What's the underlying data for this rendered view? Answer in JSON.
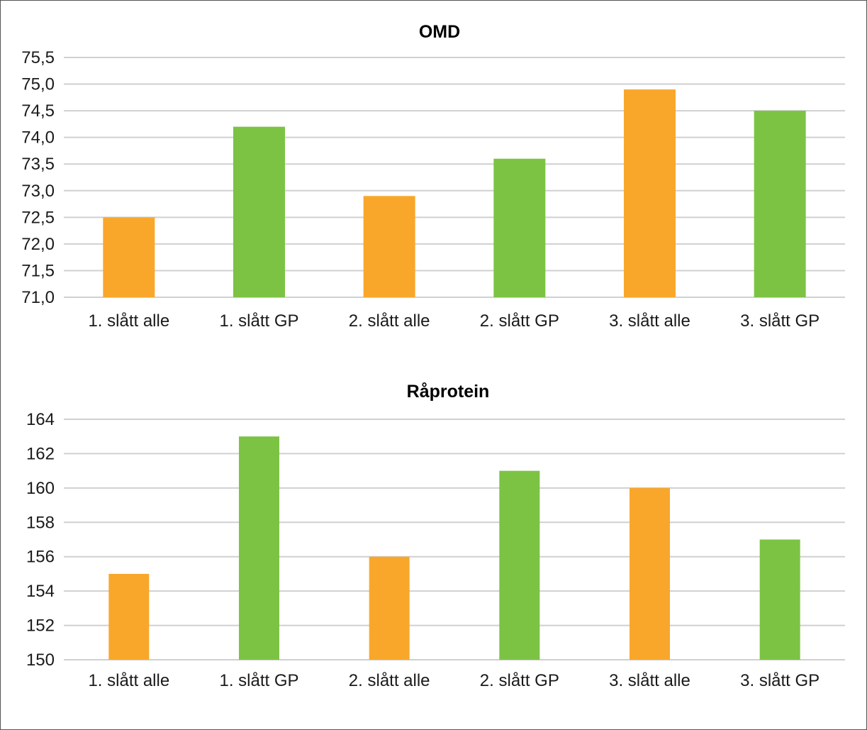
{
  "chart_data": [
    {
      "type": "bar",
      "title": "OMD",
      "categories": [
        "1. slått alle",
        "1. slått GP",
        "2. slått alle",
        "2. slått GP",
        "3. slått alle",
        "3. slått GP"
      ],
      "values": [
        72.5,
        74.2,
        72.9,
        73.6,
        74.9,
        74.5
      ],
      "bar_colors": [
        "#F9A72B",
        "#7CC344",
        "#F9A72B",
        "#7CC344",
        "#F9A72B",
        "#7CC344"
      ],
      "ylim": [
        71.0,
        75.5
      ],
      "yticks": [
        "71,0",
        "71,5",
        "72,0",
        "72,5",
        "73,0",
        "73,5",
        "74,0",
        "74,5",
        "75,0",
        "75,5"
      ],
      "grid": true,
      "xlabel": "",
      "ylabel": ""
    },
    {
      "type": "bar",
      "title": "Råprotein",
      "categories": [
        "1. slått alle",
        "1. slått GP",
        "2. slått alle",
        "2. slått GP",
        "3. slått alle",
        "3. slått GP"
      ],
      "values": [
        155,
        163,
        156,
        161,
        160,
        157
      ],
      "bar_colors": [
        "#F9A72B",
        "#7CC344",
        "#F9A72B",
        "#7CC344",
        "#F9A72B",
        "#7CC344"
      ],
      "ylim": [
        150,
        164
      ],
      "yticks": [
        "150",
        "152",
        "154",
        "156",
        "158",
        "160",
        "162",
        "164"
      ],
      "grid": true,
      "xlabel": "",
      "ylabel": ""
    }
  ]
}
